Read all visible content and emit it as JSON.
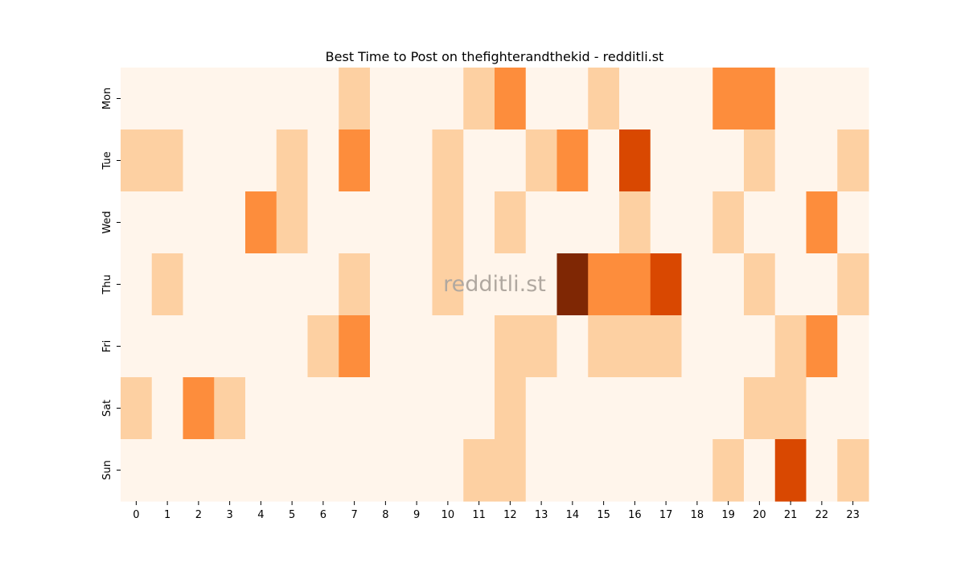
{
  "chart_data": {
    "type": "heatmap",
    "title": "Best Time to Post on thefighterandthekid - redditli.st",
    "watermark": "redditli.st",
    "x_categories": [
      "0",
      "1",
      "2",
      "3",
      "4",
      "5",
      "6",
      "7",
      "8",
      "9",
      "10",
      "11",
      "12",
      "13",
      "14",
      "15",
      "16",
      "17",
      "18",
      "19",
      "20",
      "21",
      "22",
      "23"
    ],
    "y_categories": [
      "Mon",
      "Tue",
      "Wed",
      "Thu",
      "Fri",
      "Sat",
      "Sun"
    ],
    "xlabel": "",
    "ylabel": "",
    "grid": false,
    "colorbar": false,
    "color_levels": [
      "#fff5eb",
      "#fdd0a2",
      "#fd8d3c",
      "#d94801",
      "#7f2704"
    ],
    "values": [
      [
        0,
        0,
        0,
        0,
        0,
        0,
        0,
        1,
        0,
        0,
        0,
        1,
        2,
        0,
        0,
        1,
        0,
        0,
        0,
        2,
        2,
        0,
        0,
        0
      ],
      [
        1,
        1,
        0,
        0,
        0,
        1,
        0,
        2,
        0,
        0,
        1,
        0,
        0,
        1,
        2,
        0,
        3,
        0,
        0,
        0,
        1,
        0,
        0,
        1
      ],
      [
        0,
        0,
        0,
        0,
        2,
        1,
        0,
        0,
        0,
        0,
        1,
        0,
        1,
        0,
        0,
        0,
        1,
        0,
        0,
        1,
        0,
        0,
        2,
        0
      ],
      [
        0,
        1,
        0,
        0,
        0,
        0,
        0,
        1,
        0,
        0,
        1,
        0,
        0,
        0,
        4,
        2,
        2,
        3,
        0,
        0,
        1,
        0,
        0,
        1
      ],
      [
        0,
        0,
        0,
        0,
        0,
        0,
        1,
        2,
        0,
        0,
        0,
        0,
        1,
        1,
        0,
        1,
        1,
        1,
        0,
        0,
        0,
        1,
        2,
        0
      ],
      [
        1,
        0,
        2,
        1,
        0,
        0,
        0,
        0,
        0,
        0,
        0,
        0,
        1,
        0,
        0,
        0,
        0,
        0,
        0,
        0,
        1,
        1,
        0,
        0
      ],
      [
        0,
        0,
        0,
        0,
        0,
        0,
        0,
        0,
        0,
        0,
        0,
        1,
        1,
        0,
        0,
        0,
        0,
        0,
        0,
        1,
        0,
        3,
        0,
        1
      ]
    ]
  }
}
